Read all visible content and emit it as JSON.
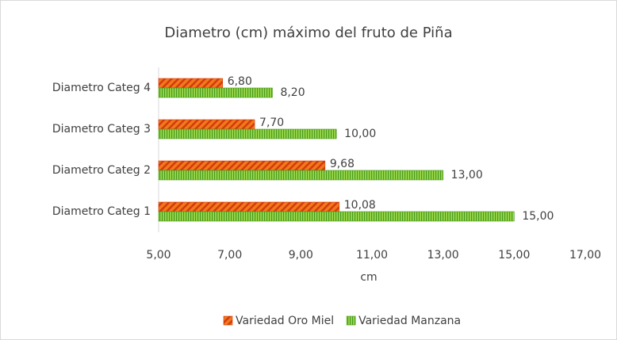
{
  "chart_data": {
    "type": "hbar",
    "title": "Diametro (cm) máximo del fruto de Piña",
    "x_label": "cm",
    "categories": [
      "Diametro Categ 1",
      "Diametro Categ 2",
      "Diametro Categ 3",
      "Diametro Categ 4"
    ],
    "series": [
      {
        "name": "Variedad Oro Miel",
        "color": "#f07a1a",
        "stripe": "#d43a10",
        "values": [
          10.08,
          9.68,
          7.7,
          6.8
        ],
        "value_labels": [
          "10,08",
          "9,68",
          "7,70",
          "6,80"
        ]
      },
      {
        "name": "Variedad Manzana",
        "color": "#9ad84a",
        "stripe": "#4a9a20",
        "values": [
          15,
          13,
          10,
          8.2
        ],
        "value_labels": [
          "15,00",
          "13,00",
          "10,00",
          "8,20"
        ]
      }
    ],
    "xlim": [
      5,
      17
    ],
    "xticks": [
      {
        "value": 5,
        "label": "5,00"
      },
      {
        "value": 7,
        "label": "7,00"
      },
      {
        "value": 9,
        "label": "9,00"
      },
      {
        "value": 11,
        "label": "11,00"
      },
      {
        "value": 13,
        "label": "13,00"
      },
      {
        "value": 15,
        "label": "15,00"
      },
      {
        "value": 17,
        "label": "17,00"
      }
    ],
    "grid": false
  }
}
